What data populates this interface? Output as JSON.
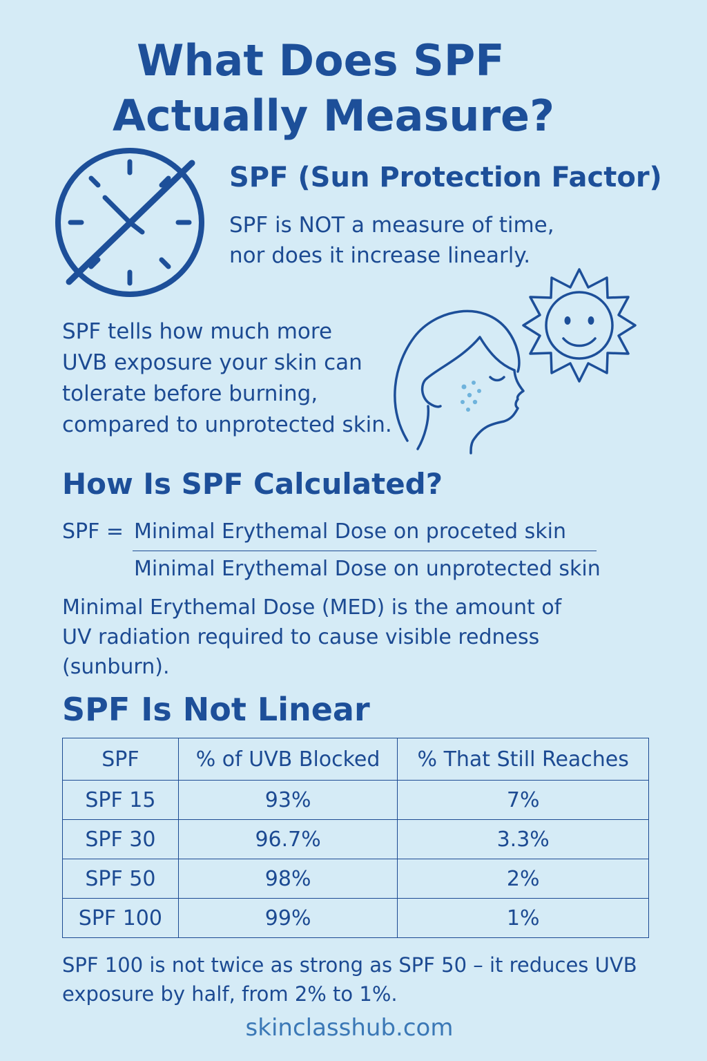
{
  "title": {
    "line1": "What Does SPF",
    "line2": "Actually Measure?"
  },
  "intro": {
    "heading": "SPF (Sun Protection Factor)",
    "text": "SPF is NOT a measure of time,\nnor does it increase linearly."
  },
  "explanation": {
    "text": "SPF tells how much more\nUVB exposure your skin can\ntolerate before burning,\ncompared to unprotected skin."
  },
  "calculation": {
    "heading": "How Is SPF Calculated?",
    "lhs": "SPF =",
    "numerator": "Minimal Erythemal Dose on proceted skin",
    "denominator": "Minimal Erythemal Dose on unprotected skin",
    "definition": "Minimal Erythemal Dose (MED) is the amount of\nUV radiation required to cause visible redness\n(sunburn)."
  },
  "linear": {
    "heading": "SPF Is Not Linear",
    "columns": [
      "SPF",
      "% of UVB Blocked",
      "% That Still Reaches"
    ],
    "rows": [
      [
        "SPF 15",
        "93%",
        "7%"
      ],
      [
        "SPF 30",
        "96.7%",
        "3.3%"
      ],
      [
        "SPF 50",
        "98%",
        "2%"
      ],
      [
        "SPF 100",
        "99%",
        "1%"
      ]
    ],
    "note": "SPF 100 is not twice as strong as SPF 50 – it reduces UVB\nexposure by half, from 2% to 1%."
  },
  "footer": {
    "site": "skinclasshub.com"
  },
  "icons": [
    "crossed-out-clock-icon",
    "face-profile-icon",
    "smiling-sun-icon"
  ],
  "colors": {
    "background": "#d5ebf6",
    "primary": "#1d4f99",
    "text": "#1c4a92",
    "link": "#3b78b6",
    "freckles": "#6fb3dc"
  }
}
